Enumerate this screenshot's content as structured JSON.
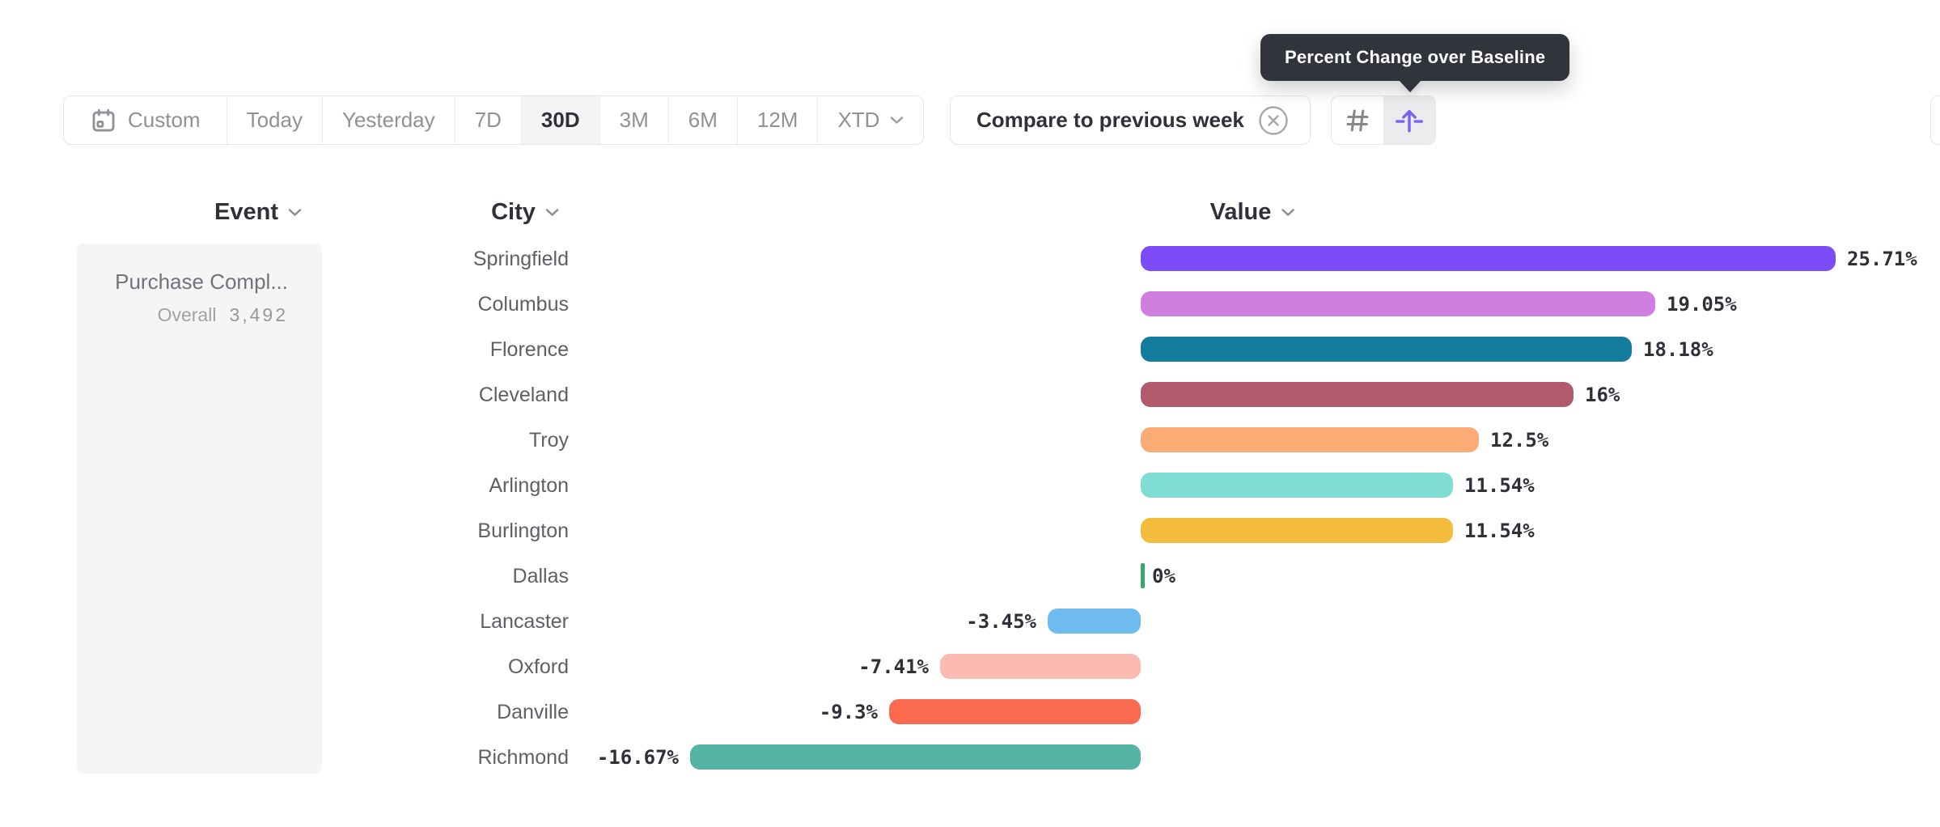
{
  "tooltip": {
    "text": "Percent Change over Baseline"
  },
  "toolbar": {
    "date_ranges": [
      {
        "label": "Custom",
        "icon": "calendar-icon",
        "selected": false
      },
      {
        "label": "Today",
        "selected": false
      },
      {
        "label": "Yesterday",
        "selected": false
      },
      {
        "label": "7D",
        "selected": false
      },
      {
        "label": "30D",
        "selected": true
      },
      {
        "label": "3M",
        "selected": false
      },
      {
        "label": "6M",
        "selected": false
      },
      {
        "label": "12M",
        "selected": false
      },
      {
        "label": "XTD",
        "chevron": true,
        "selected": false
      }
    ],
    "compare": {
      "label": "Compare to previous week",
      "dismiss_icon": "circle-x-icon"
    },
    "view_toggle": {
      "options": [
        {
          "icon": "hash-icon",
          "active": false
        },
        {
          "icon": "percent-change-icon",
          "active": true
        }
      ],
      "active_color": "#7A63F1",
      "inactive_color": "#85878D"
    }
  },
  "columns": [
    {
      "label": "Event"
    },
    {
      "label": "City"
    },
    {
      "label": "Value"
    }
  ],
  "event_panel": {
    "event_name": "Purchase Compl...",
    "overall_label": "Overall",
    "overall_value": "3,492"
  },
  "chart_data": {
    "type": "bar",
    "orientation": "horizontal",
    "title": "Percent Change over Baseline",
    "unit": "%",
    "baseline": 0,
    "xlim": [
      -16.67,
      25.71
    ],
    "grid": false,
    "categories": [
      "Springfield",
      "Columbus",
      "Florence",
      "Cleveland",
      "Troy",
      "Arlington",
      "Burlington",
      "Dallas",
      "Lancaster",
      "Oxford",
      "Danville",
      "Richmond"
    ],
    "values": [
      25.71,
      19.05,
      18.18,
      16,
      12.5,
      11.54,
      11.54,
      0,
      -3.45,
      -7.41,
      -9.3,
      -16.67
    ],
    "labels": [
      "25.71%",
      "19.05%",
      "18.18%",
      "16%",
      "12.5%",
      "11.54%",
      "11.54%",
      "0%",
      "-3.45%",
      "-7.41%",
      "-9.3%",
      "-16.67%"
    ],
    "colors": [
      "#7B4CF8",
      "#CE7FE0",
      "#147D9E",
      "#B05A6C",
      "#FCAB74",
      "#7FDDD4",
      "#F4BC3C",
      "#39A869",
      "#6FBBF0",
      "#FBBAB2",
      "#FA6A4E",
      "#56B4A7"
    ]
  }
}
